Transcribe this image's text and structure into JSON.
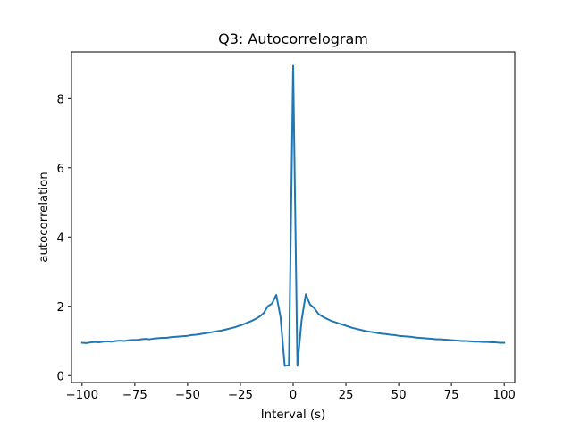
{
  "chart_data": {
    "type": "line",
    "title": "Q3: Autocorrelogram",
    "xlabel": "Interval (s)",
    "ylabel": "autocorrelation",
    "xlim": [
      -105,
      105
    ],
    "ylim": [
      -0.2,
      9.35
    ],
    "xticks": [
      -100,
      -75,
      -50,
      -25,
      0,
      25,
      50,
      75,
      100
    ],
    "xtick_labels": [
      "−100",
      "−75",
      "−50",
      "−25",
      "0",
      "25",
      "50",
      "75",
      "100"
    ],
    "yticks": [
      0,
      2,
      4,
      6,
      8
    ],
    "ytick_labels": [
      "0",
      "2",
      "4",
      "6",
      "8"
    ],
    "grid": false,
    "series": [
      {
        "color": "#1f77b4",
        "x": [
          -100,
          -98,
          -96,
          -94,
          -92,
          -90,
          -88,
          -86,
          -84,
          -82,
          -80,
          -78,
          -76,
          -74,
          -72,
          -70,
          -68,
          -66,
          -64,
          -62,
          -60,
          -58,
          -56,
          -54,
          -52,
          -50,
          -48,
          -46,
          -44,
          -42,
          -40,
          -38,
          -36,
          -34,
          -32,
          -30,
          -28,
          -26,
          -24,
          -22,
          -20,
          -18,
          -16,
          -14,
          -12,
          -10,
          -8,
          -6,
          -4,
          -2,
          0,
          2,
          4,
          6,
          8,
          10,
          12,
          14,
          16,
          18,
          20,
          22,
          24,
          26,
          28,
          30,
          32,
          34,
          36,
          38,
          40,
          42,
          44,
          46,
          48,
          50,
          52,
          54,
          56,
          58,
          60,
          62,
          64,
          66,
          68,
          70,
          72,
          74,
          76,
          78,
          80,
          82,
          84,
          86,
          88,
          90,
          92,
          94,
          96,
          98,
          100
        ],
        "y": [
          0.95,
          0.94,
          0.96,
          0.97,
          0.96,
          0.98,
          0.99,
          0.98,
          1.0,
          1.01,
          1.0,
          1.02,
          1.03,
          1.03,
          1.05,
          1.06,
          1.05,
          1.07,
          1.08,
          1.09,
          1.09,
          1.11,
          1.12,
          1.13,
          1.14,
          1.15,
          1.17,
          1.18,
          1.2,
          1.22,
          1.24,
          1.26,
          1.28,
          1.3,
          1.33,
          1.36,
          1.39,
          1.43,
          1.47,
          1.52,
          1.57,
          1.63,
          1.7,
          1.8,
          2.0,
          2.08,
          2.33,
          1.7,
          0.28,
          0.3,
          8.95,
          0.28,
          1.6,
          2.35,
          2.05,
          1.95,
          1.78,
          1.7,
          1.64,
          1.58,
          1.54,
          1.5,
          1.46,
          1.42,
          1.38,
          1.35,
          1.32,
          1.29,
          1.27,
          1.25,
          1.23,
          1.21,
          1.2,
          1.18,
          1.17,
          1.15,
          1.14,
          1.13,
          1.12,
          1.1,
          1.09,
          1.08,
          1.07,
          1.06,
          1.05,
          1.05,
          1.04,
          1.03,
          1.02,
          1.01,
          1.0,
          1.0,
          0.99,
          0.98,
          0.98,
          0.97,
          0.97,
          0.96,
          0.96,
          0.95,
          0.95
        ]
      }
    ]
  }
}
